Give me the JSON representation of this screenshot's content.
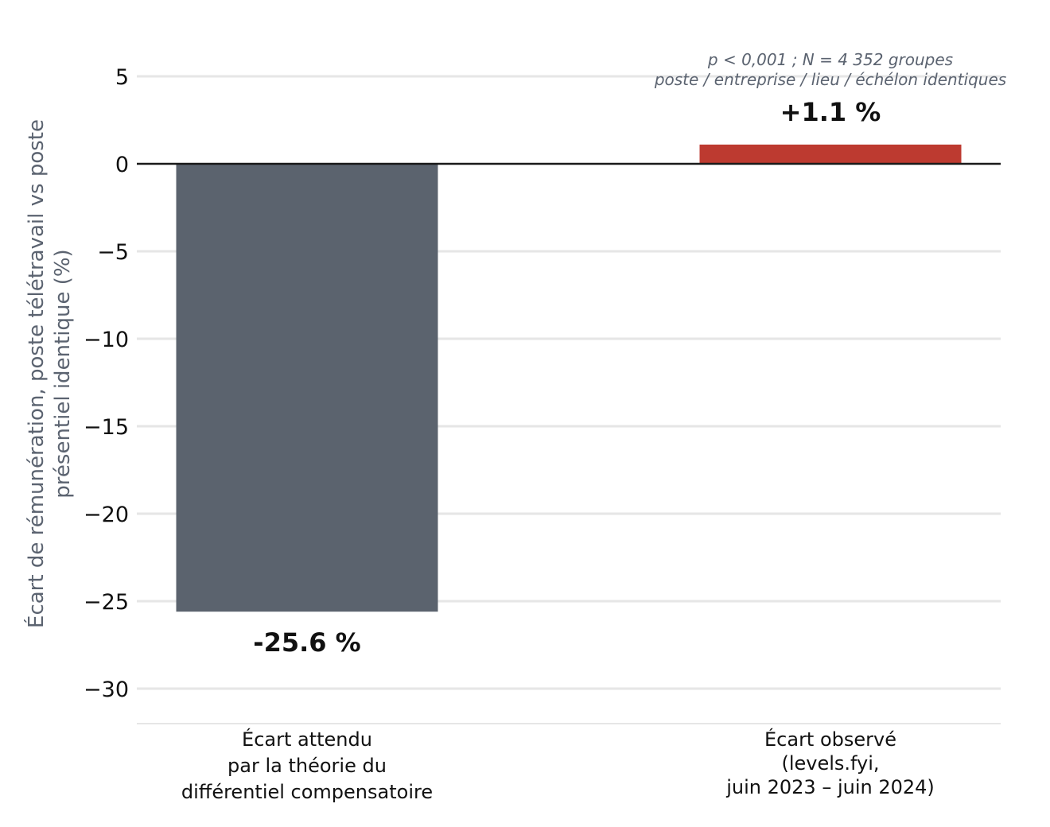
{
  "chart_data": {
    "type": "bar",
    "categories": [
      [
        "Écart attendu",
        "par la théorie du",
        "différentiel compensatoire"
      ],
      [
        "Écart observé",
        "(levels.fyi,",
        "juin 2023 – juin 2024)"
      ]
    ],
    "values": [
      -25.6,
      1.1
    ],
    "data_labels": [
      "-25.6 %",
      "+1.1 %"
    ],
    "colors": [
      "#5b636e",
      "#bd3a30"
    ],
    "title": "",
    "xlabel": "",
    "ylabel": [
      "Écart de rémunération, poste télétravail vs poste",
      "présentiel identique (%)"
    ],
    "ylim": [
      -32,
      6.5
    ],
    "yticks": [
      5,
      0,
      -5,
      -10,
      -15,
      -20,
      -25,
      -30
    ],
    "ytick_labels": [
      "5",
      "0",
      "−5",
      "−10",
      "−15",
      "−20",
      "−25",
      "−30"
    ],
    "grid": true,
    "annotation": [
      "p < 0,001 ; N = 4 352 groupes",
      "poste / entreprise / lieu / échélon identiques"
    ]
  }
}
